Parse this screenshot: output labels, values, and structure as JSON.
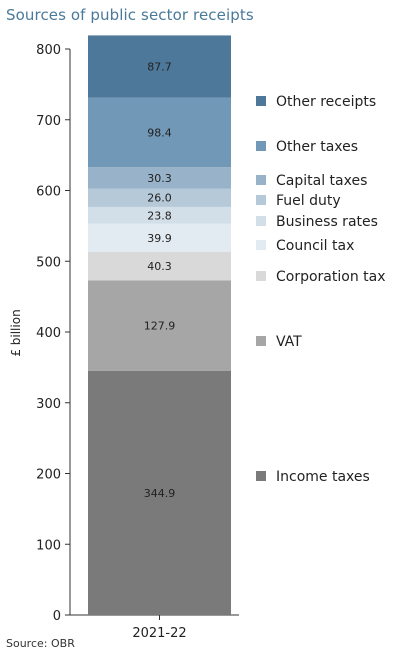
{
  "chart_data": {
    "type": "bar",
    "stacked": true,
    "title": "Sources of public sector receipts",
    "ylabel": "£ billion",
    "xlabel": "",
    "categories": [
      "2021-22"
    ],
    "ylim": [
      0,
      800
    ],
    "yticks": [
      0,
      100,
      200,
      300,
      400,
      500,
      600,
      700,
      800
    ],
    "grid": false,
    "legend_placement": "right",
    "series": [
      {
        "name": "Income taxes",
        "values": [
          344.9
        ],
        "color": "#7a7a7a",
        "label_color": "#222222"
      },
      {
        "name": "VAT",
        "values": [
          127.9
        ],
        "color": "#a6a6a6",
        "label_color": "#222222"
      },
      {
        "name": "Corporation tax",
        "values": [
          40.3
        ],
        "color": "#d9d9d9",
        "label_color": "#222222"
      },
      {
        "name": "Council tax",
        "values": [
          39.9
        ],
        "color": "#e3ebf2",
        "label_color": "#222222"
      },
      {
        "name": "Business rates",
        "values": [
          23.8
        ],
        "color": "#d2dee8",
        "label_color": "#222222"
      },
      {
        "name": "Fuel duty",
        "values": [
          26.0
        ],
        "color": "#b5c9d9",
        "label_color": "#222222"
      },
      {
        "name": "Capital taxes",
        "values": [
          30.3
        ],
        "color": "#98b3c9",
        "label_color": "#222222"
      },
      {
        "name": "Other taxes",
        "values": [
          98.4
        ],
        "color": "#7198b6",
        "label_color": "#222222"
      },
      {
        "name": "Other receipts",
        "values": [
          87.7
        ],
        "color": "#4e7899",
        "label_color": "#222222"
      }
    ],
    "source": "Source: OBR"
  }
}
